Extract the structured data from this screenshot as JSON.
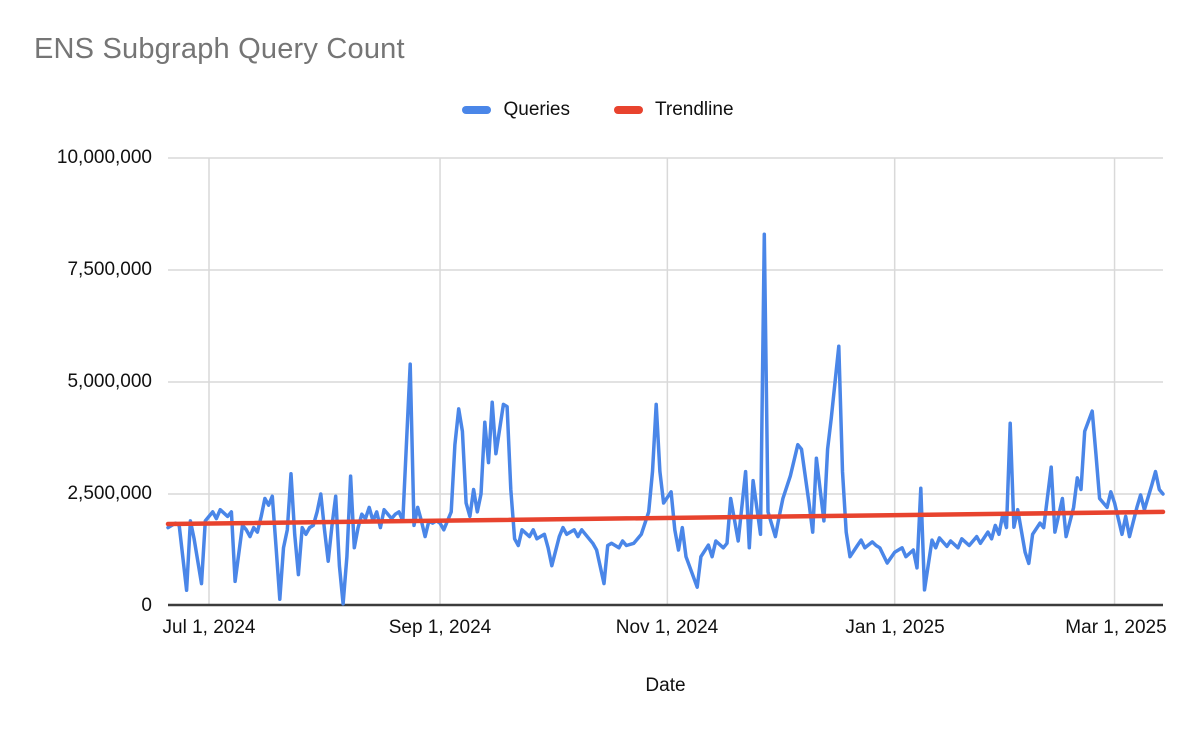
{
  "chart": {
    "title": "ENS Subgraph Query Count"
  },
  "chart_data": {
    "type": "line",
    "title": "ENS Subgraph Query Count",
    "xlabel": "Date",
    "ylabel": "",
    "x_unit": "days_from_2024-07-01",
    "x_range": [
      -11,
      256
    ],
    "ylim": [
      0,
      10000000
    ],
    "grid": true,
    "legend_position": "top-center",
    "legend": [
      {
        "label": "Queries",
        "color": "#4a86e8"
      },
      {
        "label": "Trendline",
        "color": "#e8432e"
      }
    ],
    "y_ticks": [
      {
        "value": 10000000,
        "label": "10,000,000"
      },
      {
        "value": 7500000,
        "label": "7,500,000"
      },
      {
        "value": 5000000,
        "label": "5,000,000"
      },
      {
        "value": 2500000,
        "label": "2,500,000"
      },
      {
        "value": 0,
        "label": "0"
      }
    ],
    "x_ticks": [
      {
        "day": 0,
        "label": "Jul 1, 2024"
      },
      {
        "day": 62,
        "label": "Sep 1, 2024"
      },
      {
        "day": 123,
        "label": "Nov 1, 2024"
      },
      {
        "day": 184,
        "label": "Jan 1, 2025"
      },
      {
        "day": 243,
        "label": "Mar 1, 2025"
      }
    ],
    "series": [
      {
        "name": "Queries",
        "color": "#4a86e8",
        "stroke_width": 3.5,
        "points": [
          [
            -11,
            1750000
          ],
          [
            -9,
            1850000
          ],
          [
            -8,
            1800000
          ],
          [
            -6,
            350000
          ],
          [
            -5,
            1900000
          ],
          [
            -4,
            1500000
          ],
          [
            -2,
            500000
          ],
          [
            -1,
            1900000
          ],
          [
            0,
            2000000
          ],
          [
            1,
            2100000
          ],
          [
            2,
            1950000
          ],
          [
            3,
            2150000
          ],
          [
            5,
            2000000
          ],
          [
            6,
            2100000
          ],
          [
            7,
            550000
          ],
          [
            9,
            1800000
          ],
          [
            10,
            1700000
          ],
          [
            11,
            1550000
          ],
          [
            12,
            1750000
          ],
          [
            13,
            1650000
          ],
          [
            14,
            2000000
          ],
          [
            15,
            2400000
          ],
          [
            16,
            2250000
          ],
          [
            17,
            2450000
          ],
          [
            18,
            1300000
          ],
          [
            19,
            150000
          ],
          [
            20,
            1300000
          ],
          [
            21,
            1700000
          ],
          [
            22,
            2950000
          ],
          [
            23,
            1600000
          ],
          [
            24,
            700000
          ],
          [
            25,
            1750000
          ],
          [
            26,
            1600000
          ],
          [
            27,
            1750000
          ],
          [
            28,
            1800000
          ],
          [
            29,
            2100000
          ],
          [
            30,
            2500000
          ],
          [
            31,
            1700000
          ],
          [
            32,
            1000000
          ],
          [
            33,
            1800000
          ],
          [
            34,
            2450000
          ],
          [
            35,
            900000
          ],
          [
            36,
            50000
          ],
          [
            37,
            1100000
          ],
          [
            38,
            2900000
          ],
          [
            39,
            1300000
          ],
          [
            40,
            1750000
          ],
          [
            41,
            2050000
          ],
          [
            42,
            1950000
          ],
          [
            43,
            2200000
          ],
          [
            44,
            1900000
          ],
          [
            45,
            2100000
          ],
          [
            46,
            1750000
          ],
          [
            47,
            2150000
          ],
          [
            49,
            1950000
          ],
          [
            50,
            2050000
          ],
          [
            51,
            2100000
          ],
          [
            52,
            1900000
          ],
          [
            54,
            5400000
          ],
          [
            55,
            1800000
          ],
          [
            56,
            2200000
          ],
          [
            57,
            1900000
          ],
          [
            58,
            1550000
          ],
          [
            59,
            1900000
          ],
          [
            60,
            1850000
          ],
          [
            61,
            1900000
          ],
          [
            62,
            1850000
          ],
          [
            63,
            1700000
          ],
          [
            65,
            2100000
          ],
          [
            66,
            3600000
          ],
          [
            67,
            4400000
          ],
          [
            68,
            3900000
          ],
          [
            69,
            2300000
          ],
          [
            70,
            2000000
          ],
          [
            71,
            2600000
          ],
          [
            72,
            2100000
          ],
          [
            73,
            2500000
          ],
          [
            74,
            4100000
          ],
          [
            75,
            3200000
          ],
          [
            76,
            4550000
          ],
          [
            77,
            3400000
          ],
          [
            79,
            4500000
          ],
          [
            80,
            4450000
          ],
          [
            81,
            2600000
          ],
          [
            82,
            1500000
          ],
          [
            83,
            1350000
          ],
          [
            84,
            1700000
          ],
          [
            86,
            1550000
          ],
          [
            87,
            1700000
          ],
          [
            88,
            1500000
          ],
          [
            90,
            1600000
          ],
          [
            91,
            1300000
          ],
          [
            92,
            900000
          ],
          [
            94,
            1550000
          ],
          [
            95,
            1750000
          ],
          [
            96,
            1600000
          ],
          [
            98,
            1700000
          ],
          [
            99,
            1550000
          ],
          [
            100,
            1700000
          ],
          [
            102,
            1500000
          ],
          [
            103,
            1400000
          ],
          [
            104,
            1250000
          ],
          [
            106,
            500000
          ],
          [
            107,
            1350000
          ],
          [
            108,
            1400000
          ],
          [
            110,
            1300000
          ],
          [
            111,
            1450000
          ],
          [
            112,
            1350000
          ],
          [
            114,
            1400000
          ],
          [
            115,
            1500000
          ],
          [
            116,
            1600000
          ],
          [
            118,
            2100000
          ],
          [
            119,
            3000000
          ],
          [
            120,
            4500000
          ],
          [
            121,
            3000000
          ],
          [
            122,
            2300000
          ],
          [
            124,
            2550000
          ],
          [
            125,
            1700000
          ],
          [
            126,
            1250000
          ],
          [
            127,
            1750000
          ],
          [
            128,
            1100000
          ],
          [
            131,
            420000
          ],
          [
            132,
            1100000
          ],
          [
            134,
            1360000
          ],
          [
            135,
            1100000
          ],
          [
            136,
            1450000
          ],
          [
            138,
            1300000
          ],
          [
            139,
            1400000
          ],
          [
            140,
            2400000
          ],
          [
            142,
            1450000
          ],
          [
            144,
            3000000
          ],
          [
            145,
            1300000
          ],
          [
            146,
            2800000
          ],
          [
            148,
            1600000
          ],
          [
            149,
            8300000
          ],
          [
            150,
            2100000
          ],
          [
            152,
            1550000
          ],
          [
            153,
            2000000
          ],
          [
            154,
            2400000
          ],
          [
            156,
            2900000
          ],
          [
            158,
            3600000
          ],
          [
            159,
            3500000
          ],
          [
            161,
            2300000
          ],
          [
            162,
            1650000
          ],
          [
            163,
            3300000
          ],
          [
            165,
            1900000
          ],
          [
            166,
            3500000
          ],
          [
            167,
            4200000
          ],
          [
            169,
            5800000
          ],
          [
            170,
            3000000
          ],
          [
            171,
            1650000
          ],
          [
            172,
            1100000
          ],
          [
            174,
            1350000
          ],
          [
            175,
            1470000
          ],
          [
            176,
            1300000
          ],
          [
            178,
            1430000
          ],
          [
            179,
            1350000
          ],
          [
            180,
            1300000
          ],
          [
            182,
            960000
          ],
          [
            184,
            1200000
          ],
          [
            186,
            1300000
          ],
          [
            187,
            1100000
          ],
          [
            189,
            1250000
          ],
          [
            190,
            850000
          ],
          [
            191,
            2630000
          ],
          [
            192,
            360000
          ],
          [
            194,
            1470000
          ],
          [
            195,
            1300000
          ],
          [
            196,
            1520000
          ],
          [
            198,
            1330000
          ],
          [
            199,
            1450000
          ],
          [
            201,
            1300000
          ],
          [
            202,
            1500000
          ],
          [
            204,
            1350000
          ],
          [
            206,
            1550000
          ],
          [
            207,
            1400000
          ],
          [
            209,
            1650000
          ],
          [
            210,
            1500000
          ],
          [
            211,
            1800000
          ],
          [
            212,
            1600000
          ],
          [
            213,
            2050000
          ],
          [
            214,
            1750000
          ],
          [
            215,
            4080000
          ],
          [
            216,
            1760000
          ],
          [
            217,
            2150000
          ],
          [
            219,
            1200000
          ],
          [
            220,
            950000
          ],
          [
            221,
            1600000
          ],
          [
            223,
            1850000
          ],
          [
            224,
            1750000
          ],
          [
            226,
            3100000
          ],
          [
            227,
            1650000
          ],
          [
            229,
            2400000
          ],
          [
            230,
            1550000
          ],
          [
            232,
            2200000
          ],
          [
            233,
            2860000
          ],
          [
            234,
            2600000
          ],
          [
            235,
            3900000
          ],
          [
            237,
            4350000
          ],
          [
            238,
            3400000
          ],
          [
            239,
            2400000
          ],
          [
            241,
            2200000
          ],
          [
            242,
            2550000
          ],
          [
            243,
            2300000
          ],
          [
            245,
            1600000
          ],
          [
            246,
            2000000
          ],
          [
            247,
            1550000
          ],
          [
            249,
            2200000
          ],
          [
            250,
            2480000
          ],
          [
            251,
            2150000
          ],
          [
            253,
            2700000
          ],
          [
            254,
            3000000
          ],
          [
            255,
            2600000
          ],
          [
            256,
            2500000
          ]
        ]
      },
      {
        "name": "Trendline",
        "color": "#e8432e",
        "stroke_width": 4.5,
        "points": [
          [
            -11,
            1830000
          ],
          [
            256,
            2100000
          ]
        ]
      }
    ]
  },
  "colors": {
    "title": "#757575",
    "axis_text": "#111111",
    "gridline": "#d9d9d9",
    "axis_line": "#3c3c3c",
    "background": "#ffffff"
  }
}
